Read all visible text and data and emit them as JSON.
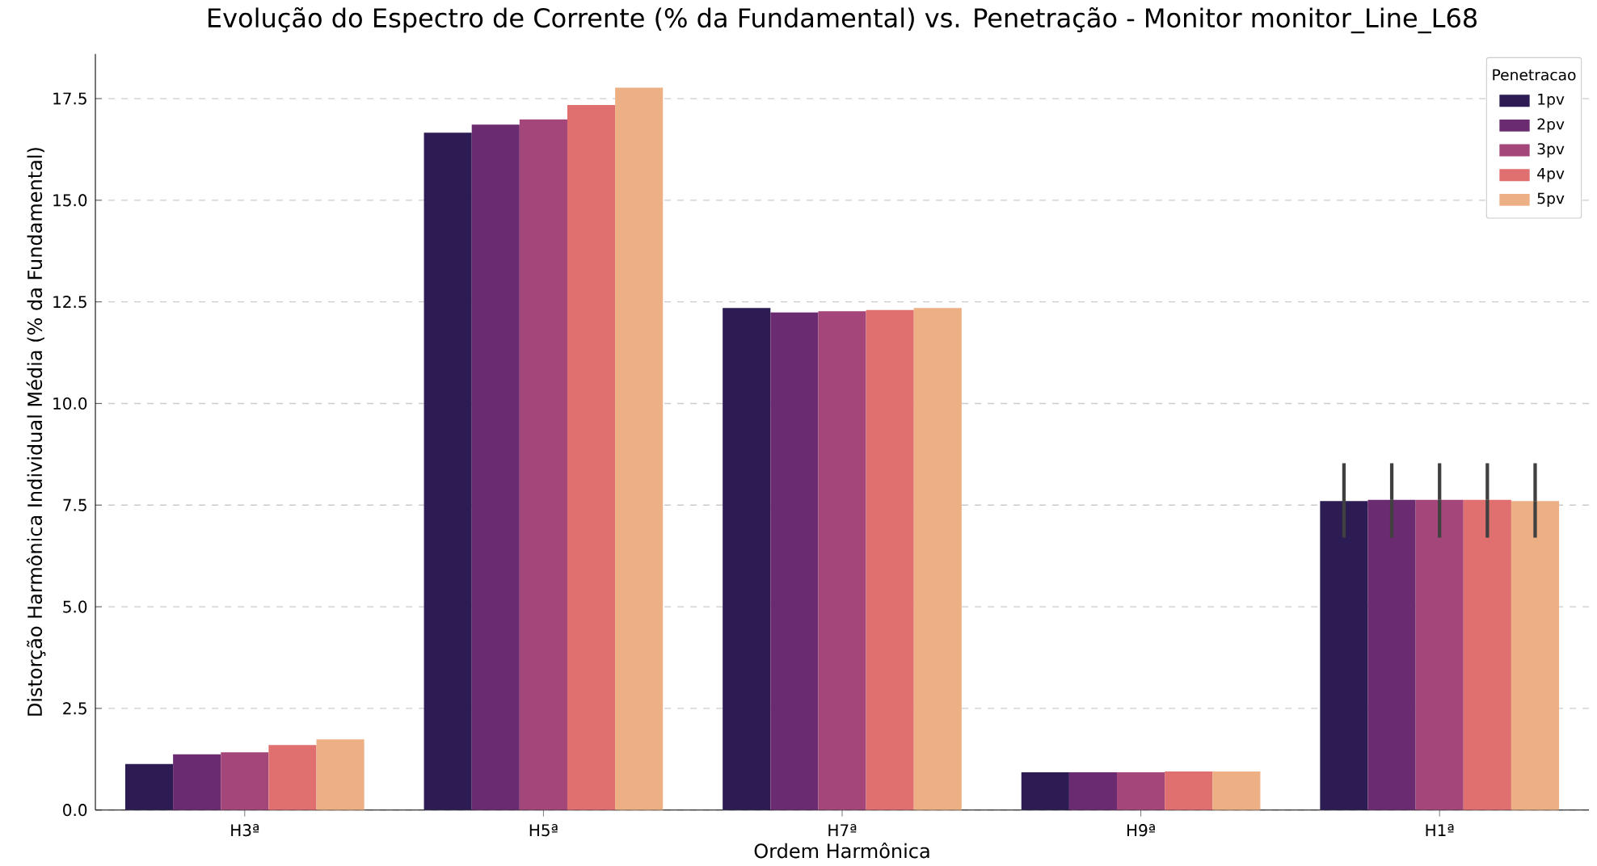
{
  "chart_data": {
    "type": "bar",
    "title": "Evolução do Espectro de Corrente (% da Fundamental) vs. Penetração - Monitor monitor_Line_L68",
    "xlabel": "Ordem Harmônica",
    "ylabel": "Distorção Harmônica Individual Média (% da Fundamental)",
    "legend_title": "Penetracao",
    "categories": [
      "H3ª",
      "H5ª",
      "H7ª",
      "H9ª",
      "H1ª"
    ],
    "series": [
      {
        "name": "1pv",
        "color": "#2d1b53",
        "values": [
          1.13,
          16.66,
          12.35,
          0.93,
          7.6
        ],
        "errors": [
          null,
          null,
          null,
          null,
          [
            6.7,
            8.53
          ]
        ]
      },
      {
        "name": "2pv",
        "color": "#6b2b71",
        "values": [
          1.37,
          16.86,
          12.24,
          0.93,
          7.63
        ],
        "errors": [
          null,
          null,
          null,
          null,
          [
            6.7,
            8.53
          ]
        ]
      },
      {
        "name": "3pv",
        "color": "#a5467a",
        "values": [
          1.42,
          16.99,
          12.27,
          0.93,
          7.63
        ],
        "errors": [
          null,
          null,
          null,
          null,
          [
            6.7,
            8.53
          ]
        ]
      },
      {
        "name": "4pv",
        "color": "#e0706f",
        "values": [
          1.6,
          17.34,
          12.3,
          0.95,
          7.63
        ],
        "errors": [
          null,
          null,
          null,
          null,
          [
            6.7,
            8.53
          ]
        ]
      },
      {
        "name": "5pv",
        "color": "#edb084",
        "values": [
          1.74,
          17.77,
          12.35,
          0.95,
          7.6
        ],
        "errors": [
          null,
          null,
          null,
          null,
          [
            6.7,
            8.53
          ]
        ]
      }
    ],
    "ylim": [
      0,
      18.6
    ],
    "yticks": [
      {
        "value": 0,
        "label": "0.0"
      },
      {
        "value": 2.5,
        "label": "2.5"
      },
      {
        "value": 5,
        "label": "5.0"
      },
      {
        "value": 7.5,
        "label": "7.5"
      },
      {
        "value": 10,
        "label": "10.0"
      },
      {
        "value": 12.5,
        "label": "12.5"
      },
      {
        "value": 15,
        "label": "15.0"
      },
      {
        "value": 17.5,
        "label": "17.5"
      }
    ],
    "grid": "y",
    "legend": "top right",
    "line_style": "solid"
  }
}
